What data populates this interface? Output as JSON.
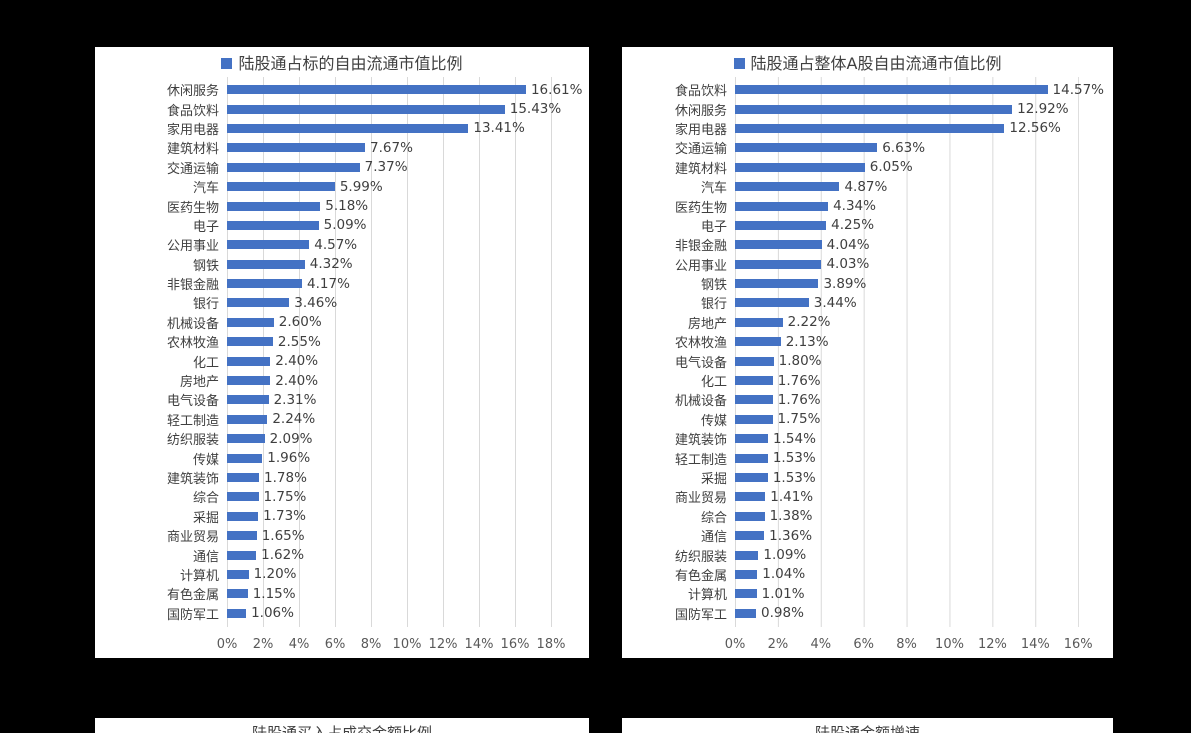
{
  "colors": {
    "bar": "#4472C4",
    "gridline": "#D9D9D9",
    "title_text": "#404040",
    "tick_text": "#595959",
    "panel_bg": "#FFFFFF",
    "page_bg": "#000000"
  },
  "chart_data": [
    {
      "type": "bar",
      "orientation": "horizontal",
      "title": "陆股通占标的自由流通市值比例",
      "legend": [
        "陆股通占标的自由流通市值比例"
      ],
      "legend_position": "top",
      "grid": true,
      "xlim": [
        0,
        18
      ],
      "x_tick_labels": [
        "0%",
        "2%",
        "4%",
        "6%",
        "8%",
        "10%",
        "12%",
        "14%",
        "16%",
        "18%"
      ],
      "categories": [
        "休闲服务",
        "食品饮料",
        "家用电器",
        "建筑材料",
        "交通运输",
        "汽车",
        "医药生物",
        "电子",
        "公用事业",
        "钢铁",
        "非银金融",
        "银行",
        "机械设备",
        "农林牧渔",
        "化工",
        "房地产",
        "电气设备",
        "轻工制造",
        "纺织服装",
        "传媒",
        "建筑装饰",
        "综合",
        "采掘",
        "商业贸易",
        "通信",
        "计算机",
        "有色金属",
        "国防军工"
      ],
      "values": [
        16.61,
        15.43,
        13.41,
        7.67,
        7.37,
        5.99,
        5.18,
        5.09,
        4.57,
        4.32,
        4.17,
        3.46,
        2.6,
        2.55,
        2.4,
        2.4,
        2.31,
        2.24,
        2.09,
        1.96,
        1.78,
        1.75,
        1.73,
        1.65,
        1.62,
        1.2,
        1.15,
        1.06
      ],
      "value_labels": [
        "16.61%",
        "15.43%",
        "13.41%",
        "7.67%",
        "7.37%",
        "5.99%",
        "5.18%",
        "5.09%",
        "4.57%",
        "4.32%",
        "4.17%",
        "3.46%",
        "2.60%",
        "2.55%",
        "2.40%",
        "2.40%",
        "2.31%",
        "2.24%",
        "2.09%",
        "1.96%",
        "1.78%",
        "1.75%",
        "1.73%",
        "1.65%",
        "1.62%",
        "1.20%",
        "1.15%",
        "1.06%"
      ]
    },
    {
      "type": "bar",
      "orientation": "horizontal",
      "title": "陆股通占整体A股自由流通市值比例",
      "legend": [
        "陆股通占整体A股自由流通市值比例"
      ],
      "legend_position": "top",
      "grid": true,
      "xlim": [
        0,
        16
      ],
      "x_tick_labels": [
        "0%",
        "2%",
        "4%",
        "6%",
        "8%",
        "10%",
        "12%",
        "14%",
        "16%"
      ],
      "categories": [
        "食品饮料",
        "休闲服务",
        "家用电器",
        "交通运输",
        "建筑材料",
        "汽车",
        "医药生物",
        "电子",
        "非银金融",
        "公用事业",
        "钢铁",
        "银行",
        "房地产",
        "农林牧渔",
        "电气设备",
        "化工",
        "机械设备",
        "传媒",
        "建筑装饰",
        "轻工制造",
        "采掘",
        "商业贸易",
        "综合",
        "通信",
        "纺织服装",
        "有色金属",
        "计算机",
        "国防军工"
      ],
      "values": [
        14.57,
        12.92,
        12.56,
        6.63,
        6.05,
        4.87,
        4.34,
        4.25,
        4.04,
        4.03,
        3.89,
        3.44,
        2.22,
        2.13,
        1.8,
        1.76,
        1.76,
        1.75,
        1.54,
        1.53,
        1.53,
        1.41,
        1.38,
        1.36,
        1.09,
        1.04,
        1.01,
        0.98
      ],
      "value_labels": [
        "14.57%",
        "12.92%",
        "12.56%",
        "6.63%",
        "6.05%",
        "4.87%",
        "4.34%",
        "4.25%",
        "4.04%",
        "4.03%",
        "3.89%",
        "3.44%",
        "2.22%",
        "2.13%",
        "1.80%",
        "1.76%",
        "1.76%",
        "1.75%",
        "1.54%",
        "1.53%",
        "1.53%",
        "1.41%",
        "1.38%",
        "1.36%",
        "1.09%",
        "1.04%",
        "1.01%",
        "0.98%"
      ]
    }
  ],
  "bottom_charts": [
    {
      "title": "陆股通买入占成交金额比例"
    },
    {
      "title": "陆股通金额增速"
    }
  ]
}
